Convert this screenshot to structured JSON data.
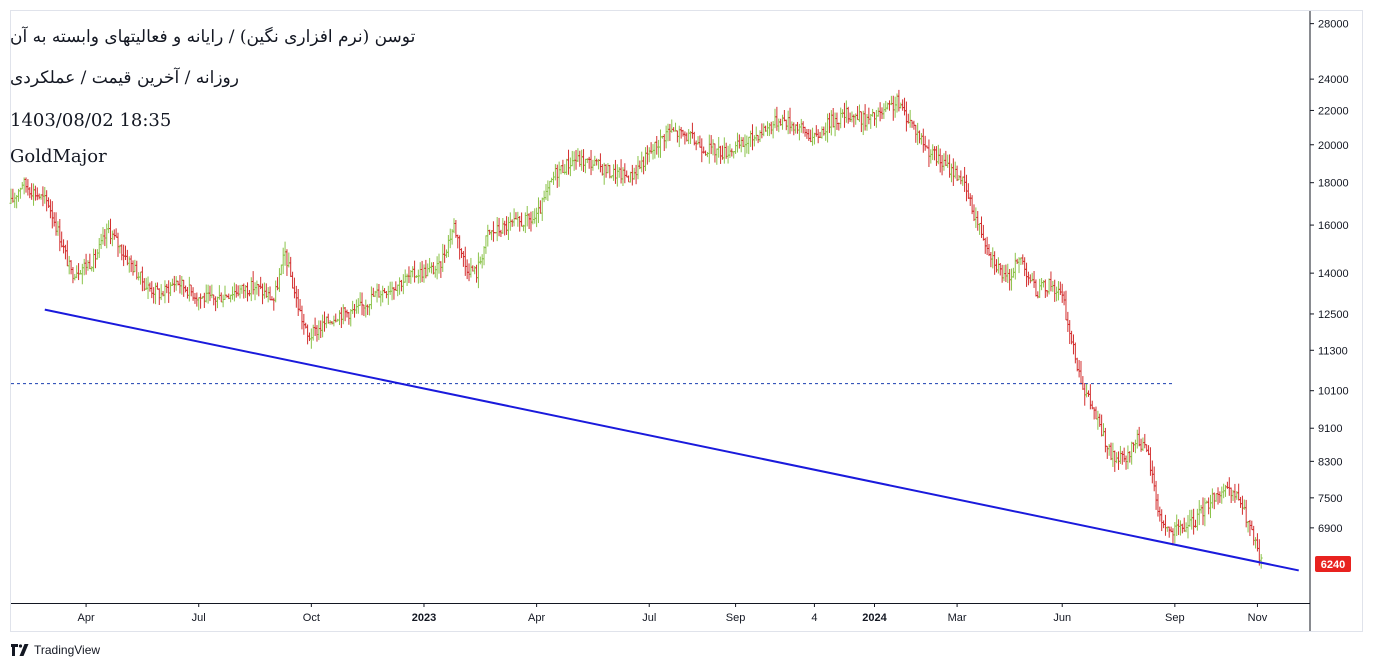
{
  "legend": {
    "title": "توسن (نرم افزاری نگین) / رایانه و فعالیتهای وابسته به آن",
    "subtitle": "روزانه / آخرین قیمت / عملکردی",
    "datetime": "1403/08/02 18:35",
    "author": "GoldMajor"
  },
  "footer": {
    "brand": "TradingView"
  },
  "colors": {
    "up": "#8bc34a",
    "down": "#d32f2f",
    "trendline": "#1a1adc",
    "hline": "#1a3fb0",
    "price_badge": "#e8221f"
  },
  "chart_data": {
    "type": "ohlc",
    "scale": "log",
    "ylim": [
      5600,
      29000
    ],
    "y_ticks": [
      {
        "value": 28000,
        "label": "28000"
      },
      {
        "value": 24000,
        "label": "24000"
      },
      {
        "value": 22000,
        "label": "22000"
      },
      {
        "value": 20000,
        "label": "20000"
      },
      {
        "value": 18000,
        "label": "18000"
      },
      {
        "value": 16000,
        "label": "16000"
      },
      {
        "value": 14000,
        "label": "14000"
      },
      {
        "value": 12500,
        "label": "12500"
      },
      {
        "value": 11300,
        "label": "11300"
      },
      {
        "value": 10100,
        "label": "10100"
      },
      {
        "value": 9100,
        "label": "9100"
      },
      {
        "value": 8300,
        "label": "8300"
      },
      {
        "value": 7500,
        "label": "7500"
      },
      {
        "value": 6900,
        "label": "6900"
      }
    ],
    "x_ticks": [
      {
        "t": 2,
        "label": "Apr",
        "bold": false
      },
      {
        "t": 5,
        "label": "Jul",
        "bold": false
      },
      {
        "t": 8,
        "label": "Oct",
        "bold": false
      },
      {
        "t": 11,
        "label": "2023",
        "bold": true
      },
      {
        "t": 14,
        "label": "Apr",
        "bold": false
      },
      {
        "t": 17,
        "label": "Jul",
        "bold": false
      },
      {
        "t": 19.3,
        "label": "Sep",
        "bold": false
      },
      {
        "t": 21.4,
        "label": "4",
        "bold": false
      },
      {
        "t": 23,
        "label": "2024",
        "bold": true
      },
      {
        "t": 25.2,
        "label": "Mar",
        "bold": false
      },
      {
        "t": 28,
        "label": "Jun",
        "bold": false
      },
      {
        "t": 31,
        "label": "Sep",
        "bold": false
      },
      {
        "t": 33.2,
        "label": "Nov",
        "bold": false
      }
    ],
    "t_range": [
      0,
      34.6
    ],
    "last_price": {
      "value": 6240,
      "label": "6240"
    },
    "horizontal_line": {
      "value": 10300,
      "t_start": 0,
      "t_end": 31.0
    },
    "trendline": {
      "start": {
        "t": 0.9,
        "value": 12650
      },
      "end": {
        "t": 34.3,
        "value": 6130
      }
    },
    "price_path": [
      [
        0,
        17000
      ],
      [
        0.3,
        18000
      ],
      [
        1.0,
        17000
      ],
      [
        1.3,
        15500
      ],
      [
        1.6,
        14000
      ],
      [
        2.2,
        14500
      ],
      [
        2.6,
        15800
      ],
      [
        3.0,
        14800
      ],
      [
        3.6,
        13500
      ],
      [
        4.0,
        13200
      ],
      [
        4.4,
        13700
      ],
      [
        5.0,
        13100
      ],
      [
        5.4,
        13000
      ],
      [
        5.9,
        13300
      ],
      [
        6.5,
        13500
      ],
      [
        7.0,
        13000
      ],
      [
        7.3,
        14800
      ],
      [
        7.6,
        13000
      ],
      [
        7.9,
        11700
      ],
      [
        8.3,
        12100
      ],
      [
        8.7,
        12500
      ],
      [
        9.2,
        12600
      ],
      [
        9.7,
        13200
      ],
      [
        10.3,
        13600
      ],
      [
        10.8,
        14000
      ],
      [
        11.4,
        14200
      ],
      [
        11.8,
        16000
      ],
      [
        12.1,
        14300
      ],
      [
        12.4,
        14000
      ],
      [
        12.7,
        15600
      ],
      [
        13.3,
        16000
      ],
      [
        14.0,
        16300
      ],
      [
        14.5,
        18500
      ],
      [
        15.0,
        19200
      ],
      [
        15.5,
        19000
      ],
      [
        16.0,
        18500
      ],
      [
        16.5,
        18300
      ],
      [
        17.0,
        19500
      ],
      [
        17.5,
        20800
      ],
      [
        18.0,
        20500
      ],
      [
        18.5,
        19800
      ],
      [
        19.0,
        19600
      ],
      [
        19.5,
        20000
      ],
      [
        20.0,
        20800
      ],
      [
        20.5,
        21500
      ],
      [
        21.0,
        21000
      ],
      [
        21.4,
        20300
      ],
      [
        21.8,
        21300
      ],
      [
        22.3,
        21800
      ],
      [
        22.8,
        21400
      ],
      [
        23.2,
        21800
      ],
      [
        23.6,
        22500
      ],
      [
        24.0,
        21200
      ],
      [
        24.4,
        19800
      ],
      [
        24.8,
        19000
      ],
      [
        25.3,
        18300
      ],
      [
        25.7,
        16300
      ],
      [
        26.1,
        14800
      ],
      [
        26.5,
        13700
      ],
      [
        26.9,
        14600
      ],
      [
        27.3,
        13300
      ],
      [
        27.7,
        13600
      ],
      [
        28.0,
        13100
      ],
      [
        28.3,
        11300
      ],
      [
        28.6,
        10100
      ],
      [
        28.9,
        9400
      ],
      [
        29.3,
        8400
      ],
      [
        29.7,
        8300
      ],
      [
        30.0,
        8900
      ],
      [
        30.3,
        8400
      ],
      [
        30.6,
        7100
      ],
      [
        30.9,
        6800
      ],
      [
        31.2,
        6900
      ],
      [
        31.5,
        7000
      ],
      [
        31.8,
        7300
      ],
      [
        32.1,
        7600
      ],
      [
        32.4,
        7600
      ],
      [
        32.7,
        7500
      ],
      [
        33.0,
        6900
      ],
      [
        33.3,
        6250
      ]
    ]
  }
}
